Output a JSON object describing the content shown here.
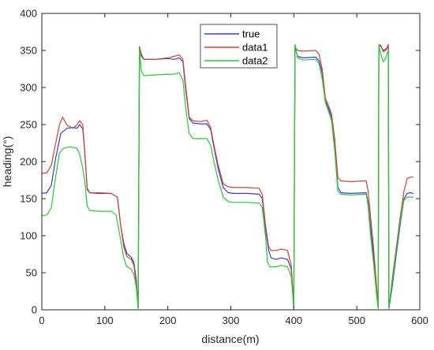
{
  "chart_data": {
    "type": "line",
    "title": "",
    "xlabel": "distance(m)",
    "ylabel": "heading(°)",
    "xlim": [
      0,
      600
    ],
    "ylim": [
      0,
      400
    ],
    "xticks": [
      0,
      100,
      200,
      300,
      400,
      500,
      600
    ],
    "yticks": [
      0,
      50,
      100,
      150,
      200,
      250,
      300,
      350,
      400
    ],
    "grid": false,
    "legend_position": "top-center",
    "series": [
      {
        "name": "true",
        "color": "#3a3ad6",
        "points": [
          [
            0,
            157
          ],
          [
            8,
            158
          ],
          [
            15,
            168
          ],
          [
            22,
            205
          ],
          [
            30,
            238
          ],
          [
            40,
            245
          ],
          [
            50,
            246
          ],
          [
            56,
            245
          ],
          [
            60,
            250
          ],
          [
            65,
            244
          ],
          [
            68,
            215
          ],
          [
            72,
            164
          ],
          [
            76,
            158
          ],
          [
            90,
            157
          ],
          [
            110,
            157
          ],
          [
            120,
            152
          ],
          [
            125,
            115
          ],
          [
            130,
            90
          ],
          [
            135,
            76
          ],
          [
            142,
            71
          ],
          [
            146,
            64
          ],
          [
            150,
            40
          ],
          [
            153,
            2
          ],
          [
            155,
            355
          ],
          [
            158,
            345
          ],
          [
            162,
            338
          ],
          [
            180,
            338
          ],
          [
            200,
            339
          ],
          [
            210,
            338
          ],
          [
            218,
            340
          ],
          [
            224,
            335
          ],
          [
            228,
            300
          ],
          [
            234,
            258
          ],
          [
            240,
            252
          ],
          [
            252,
            251
          ],
          [
            262,
            251
          ],
          [
            268,
            243
          ],
          [
            272,
            225
          ],
          [
            280,
            190
          ],
          [
            288,
            165
          ],
          [
            296,
            158
          ],
          [
            305,
            157
          ],
          [
            325,
            157
          ],
          [
            345,
            156
          ],
          [
            350,
            150
          ],
          [
            355,
            110
          ],
          [
            360,
            80
          ],
          [
            364,
            70
          ],
          [
            372,
            68
          ],
          [
            380,
            70
          ],
          [
            390,
            68
          ],
          [
            396,
            55
          ],
          [
            400,
            2
          ],
          [
            402,
            354
          ],
          [
            406,
            342
          ],
          [
            415,
            340
          ],
          [
            435,
            341
          ],
          [
            440,
            336
          ],
          [
            445,
            320
          ],
          [
            450,
            282
          ],
          [
            455,
            272
          ],
          [
            460,
            260
          ],
          [
            465,
            225
          ],
          [
            470,
            165
          ],
          [
            475,
            158
          ],
          [
            490,
            157
          ],
          [
            515,
            158
          ],
          [
            518,
            145
          ],
          [
            522,
            110
          ],
          [
            527,
            70
          ],
          [
            532,
            20
          ],
          [
            534,
            2
          ],
          [
            535,
            355
          ],
          [
            538,
            356
          ],
          [
            542,
            350
          ],
          [
            546,
            352
          ],
          [
            550,
            354
          ],
          [
            551,
            2
          ],
          [
            556,
            30
          ],
          [
            562,
            70
          ],
          [
            568,
            110
          ],
          [
            575,
            150
          ],
          [
            580,
            157
          ],
          [
            585,
            158
          ],
          [
            590,
            157
          ]
        ]
      },
      {
        "name": "data1",
        "color": "#d44232",
        "points": [
          [
            0,
            184
          ],
          [
            8,
            185
          ],
          [
            15,
            195
          ],
          [
            22,
            225
          ],
          [
            28,
            250
          ],
          [
            33,
            260
          ],
          [
            40,
            249
          ],
          [
            50,
            245
          ],
          [
            56,
            250
          ],
          [
            60,
            255
          ],
          [
            65,
            250
          ],
          [
            68,
            215
          ],
          [
            72,
            162
          ],
          [
            76,
            158
          ],
          [
            90,
            158
          ],
          [
            110,
            157
          ],
          [
            120,
            152
          ],
          [
            125,
            115
          ],
          [
            130,
            85
          ],
          [
            135,
            72
          ],
          [
            142,
            68
          ],
          [
            146,
            60
          ],
          [
            150,
            35
          ],
          [
            153,
            2
          ],
          [
            155,
            355
          ],
          [
            158,
            342
          ],
          [
            162,
            338
          ],
          [
            180,
            338
          ],
          [
            200,
            340
          ],
          [
            210,
            342
          ],
          [
            218,
            344
          ],
          [
            224,
            338
          ],
          [
            228,
            305
          ],
          [
            234,
            260
          ],
          [
            240,
            255
          ],
          [
            252,
            254
          ],
          [
            262,
            256
          ],
          [
            268,
            246
          ],
          [
            272,
            228
          ],
          [
            280,
            195
          ],
          [
            288,
            170
          ],
          [
            296,
            166
          ],
          [
            305,
            165
          ],
          [
            325,
            165
          ],
          [
            345,
            164
          ],
          [
            350,
            155
          ],
          [
            355,
            115
          ],
          [
            360,
            85
          ],
          [
            364,
            80
          ],
          [
            372,
            80
          ],
          [
            380,
            82
          ],
          [
            390,
            80
          ],
          [
            396,
            60
          ],
          [
            400,
            2
          ],
          [
            402,
            355
          ],
          [
            406,
            350
          ],
          [
            415,
            349
          ],
          [
            435,
            350
          ],
          [
            440,
            345
          ],
          [
            445,
            325
          ],
          [
            450,
            286
          ],
          [
            455,
            276
          ],
          [
            460,
            264
          ],
          [
            465,
            230
          ],
          [
            470,
            178
          ],
          [
            475,
            174
          ],
          [
            490,
            173
          ],
          [
            515,
            174
          ],
          [
            518,
            160
          ],
          [
            522,
            125
          ],
          [
            527,
            80
          ],
          [
            532,
            25
          ],
          [
            534,
            2
          ],
          [
            535,
            358
          ],
          [
            538,
            357
          ],
          [
            542,
            348
          ],
          [
            546,
            350
          ],
          [
            550,
            358
          ],
          [
            551,
            2
          ],
          [
            556,
            40
          ],
          [
            562,
            80
          ],
          [
            568,
            120
          ],
          [
            575,
            160
          ],
          [
            580,
            177
          ],
          [
            585,
            179
          ],
          [
            590,
            179
          ]
        ]
      },
      {
        "name": "data2",
        "color": "#22cc33",
        "points": [
          [
            0,
            127
          ],
          [
            8,
            128
          ],
          [
            15,
            138
          ],
          [
            22,
            180
          ],
          [
            28,
            212
          ],
          [
            35,
            218
          ],
          [
            45,
            220
          ],
          [
            56,
            218
          ],
          [
            60,
            210
          ],
          [
            64,
            195
          ],
          [
            68,
            175
          ],
          [
            72,
            140
          ],
          [
            76,
            134
          ],
          [
            90,
            133
          ],
          [
            110,
            133
          ],
          [
            118,
            128
          ],
          [
            124,
            100
          ],
          [
            130,
            70
          ],
          [
            135,
            58
          ],
          [
            142,
            55
          ],
          [
            146,
            48
          ],
          [
            150,
            30
          ],
          [
            153,
            2
          ],
          [
            155,
            352
          ],
          [
            158,
            322
          ],
          [
            162,
            316
          ],
          [
            180,
            317
          ],
          [
            200,
            318
          ],
          [
            210,
            318
          ],
          [
            218,
            320
          ],
          [
            224,
            310
          ],
          [
            228,
            275
          ],
          [
            234,
            238
          ],
          [
            240,
            231
          ],
          [
            252,
            231
          ],
          [
            262,
            231
          ],
          [
            268,
            222
          ],
          [
            272,
            205
          ],
          [
            280,
            175
          ],
          [
            288,
            152
          ],
          [
            296,
            146
          ],
          [
            305,
            145
          ],
          [
            325,
            145
          ],
          [
            345,
            144
          ],
          [
            350,
            138
          ],
          [
            355,
            100
          ],
          [
            358,
            65
          ],
          [
            362,
            58
          ],
          [
            372,
            58
          ],
          [
            380,
            60
          ],
          [
            390,
            58
          ],
          [
            396,
            45
          ],
          [
            400,
            2
          ],
          [
            402,
            358
          ],
          [
            406,
            340
          ],
          [
            415,
            337
          ],
          [
            435,
            338
          ],
          [
            440,
            332
          ],
          [
            445,
            312
          ],
          [
            450,
            280
          ],
          [
            455,
            268
          ],
          [
            460,
            255
          ],
          [
            465,
            215
          ],
          [
            470,
            160
          ],
          [
            475,
            156
          ],
          [
            490,
            155
          ],
          [
            515,
            156
          ],
          [
            518,
            140
          ],
          [
            522,
            100
          ],
          [
            527,
            60
          ],
          [
            532,
            15
          ],
          [
            534,
            2
          ],
          [
            535,
            357
          ],
          [
            538,
            345
          ],
          [
            542,
            335
          ],
          [
            546,
            340
          ],
          [
            550,
            350
          ],
          [
            551,
            2
          ],
          [
            556,
            35
          ],
          [
            562,
            75
          ],
          [
            568,
            115
          ],
          [
            575,
            148
          ],
          [
            580,
            152
          ],
          [
            585,
            152
          ],
          [
            590,
            152
          ]
        ]
      }
    ]
  }
}
